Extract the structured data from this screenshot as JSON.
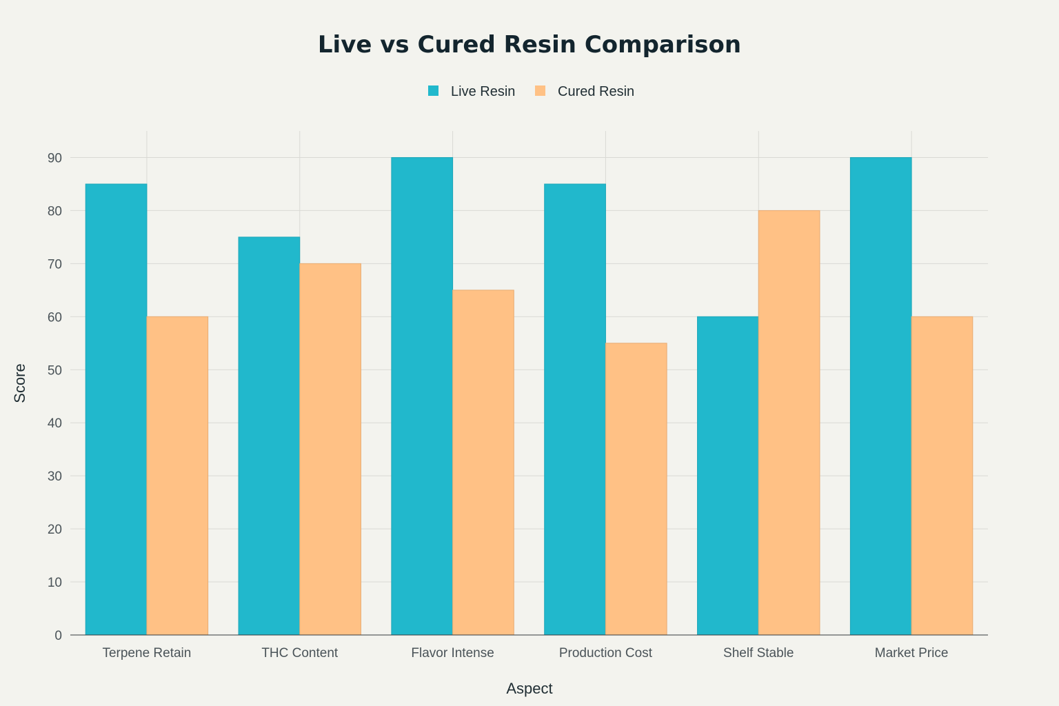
{
  "chart_data": {
    "type": "bar",
    "title": "Live vs Cured Resin Comparison",
    "xlabel": "Aspect",
    "ylabel": "Score",
    "ylim": [
      0,
      95
    ],
    "yticks": [
      0,
      10,
      20,
      30,
      40,
      50,
      60,
      70,
      80,
      90
    ],
    "grid": true,
    "legend_position": "top-center",
    "categories": [
      "Terpene Retain",
      "THC Content",
      "Flavor Intense",
      "Production Cost",
      "Shelf Stable",
      "Market Price"
    ],
    "series": [
      {
        "name": "Live Resin",
        "color": "#21b8cc",
        "values": [
          85,
          75,
          90,
          85,
          60,
          90
        ]
      },
      {
        "name": "Cured Resin",
        "color": "#ffc185",
        "values": [
          60,
          70,
          65,
          55,
          80,
          60
        ]
      }
    ]
  }
}
